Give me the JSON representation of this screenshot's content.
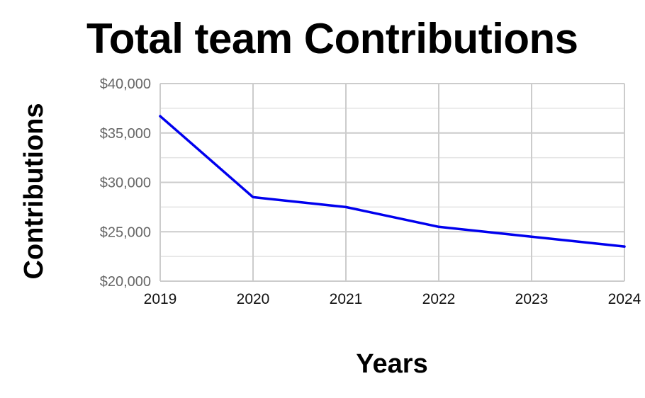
{
  "chart_data": {
    "type": "line",
    "title": "Total team Contributions",
    "xlabel": "Years",
    "ylabel": "Contributions",
    "categories": [
      "2019",
      "2020",
      "2021",
      "2022",
      "2023",
      "2024"
    ],
    "y_tick_labels": [
      "$40,000",
      "$35,000",
      "$30,000",
      "$25,000",
      "$20,000"
    ],
    "series": [
      {
        "values": [
          36700,
          28500,
          27500,
          25500,
          24500,
          23500
        ],
        "color": "#0000ee"
      }
    ],
    "ylim": [
      20000,
      40000
    ],
    "grid": true,
    "legend": "none"
  }
}
